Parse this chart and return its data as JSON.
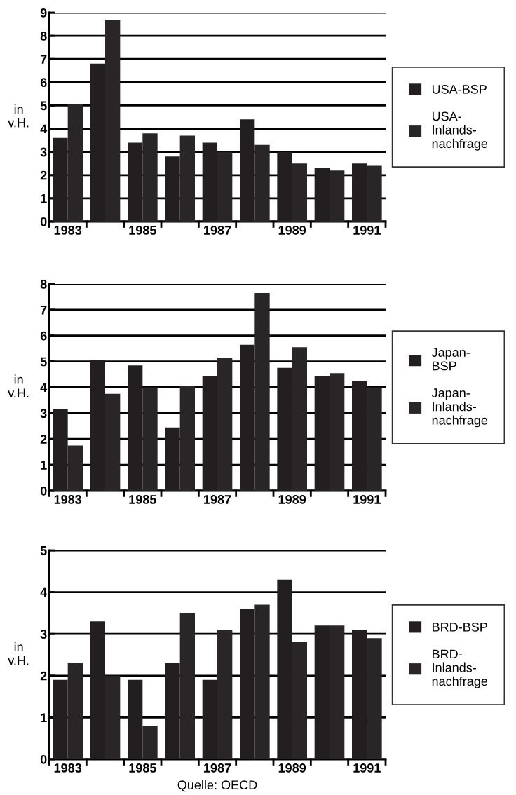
{
  "chart_data": [
    {
      "type": "bar",
      "ylabel": "in\nv.H.",
      "categories": [
        "1983",
        null,
        "1985",
        null,
        "1987",
        null,
        "1989",
        null,
        "1991"
      ],
      "ylim": [
        0,
        9
      ],
      "yticks": [
        0,
        1,
        2,
        3,
        4,
        5,
        6,
        7,
        8,
        9
      ],
      "grid": "y",
      "legend": "right",
      "series": [
        {
          "name": "USA-BSP",
          "color": "#231f20",
          "values": [
            3.6,
            6.8,
            3.4,
            2.8,
            3.4,
            4.4,
            3.0,
            2.3,
            2.5
          ]
        },
        {
          "name": "USA-\nInlands-\nnachfrage",
          "color": "#2a2627",
          "values": [
            5.05,
            8.7,
            3.8,
            3.7,
            3.0,
            3.3,
            2.5,
            2.2,
            2.4
          ]
        }
      ]
    },
    {
      "type": "bar",
      "ylabel": "in\nv.H.",
      "categories": [
        "1983",
        null,
        "1985",
        null,
        "1987",
        null,
        "1989",
        null,
        "1991"
      ],
      "ylim": [
        0,
        8
      ],
      "yticks": [
        0,
        1,
        2,
        3,
        4,
        5,
        6,
        7,
        8
      ],
      "grid": "y",
      "legend": "right",
      "series": [
        {
          "name": "Japan-\nBSP",
          "color": "#231f20",
          "values": [
            3.15,
            5.05,
            4.85,
            2.45,
            4.45,
            5.65,
            4.75,
            4.45,
            4.25
          ]
        },
        {
          "name": "Japan-\nInlands-\nnachfrage",
          "color": "#2a2627",
          "values": [
            1.75,
            3.75,
            4.0,
            4.05,
            5.15,
            7.65,
            5.55,
            4.55,
            4.0
          ]
        }
      ]
    },
    {
      "type": "bar",
      "ylabel": "in\nv.H.",
      "categories": [
        "1983",
        null,
        "1985",
        null,
        "1987",
        null,
        "1989",
        null,
        "1991"
      ],
      "ylim": [
        0,
        5
      ],
      "yticks": [
        0,
        1,
        2,
        3,
        4,
        5
      ],
      "grid": "y",
      "legend": "right",
      "annotations": [
        "Quelle: OECD"
      ],
      "series": [
        {
          "name": "BRD-BSP",
          "color": "#231f20",
          "values": [
            1.9,
            3.3,
            1.9,
            2.3,
            1.9,
            3.6,
            4.3,
            3.2,
            3.1
          ]
        },
        {
          "name": "BRD-\nInlands-\nnachfrage",
          "color": "#2a2627",
          "values": [
            2.3,
            2.0,
            0.8,
            3.5,
            3.1,
            3.7,
            2.8,
            3.2,
            2.9
          ]
        }
      ]
    }
  ]
}
